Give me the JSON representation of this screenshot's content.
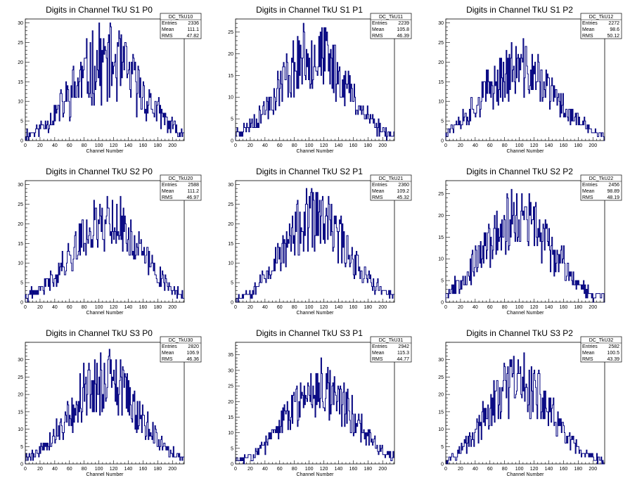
{
  "chart_data": [
    {
      "type": "histogram",
      "title": "Digits in Channel TkU S1 P0",
      "xlabel": "Channel Number",
      "xlim": [
        0,
        216
      ],
      "ylim": [
        0,
        31
      ],
      "xticks": [
        0,
        20,
        40,
        60,
        80,
        100,
        120,
        140,
        160,
        180,
        200
      ],
      "yticks": [
        0,
        5,
        10,
        15,
        20,
        25,
        30
      ],
      "stats": {
        "name": "DC_TkU10",
        "entries": "2336",
        "mean": "111.1",
        "rms": "47.82"
      },
      "shape": {
        "center": 111,
        "sigma": 47.8,
        "peak": 20,
        "noise": 0.32,
        "seed": 11
      }
    },
    {
      "type": "histogram",
      "title": "Digits in Channel TkU S1 P1",
      "xlabel": "Channel Number",
      "xlim": [
        0,
        216
      ],
      "ylim": [
        0,
        28
      ],
      "xticks": [
        0,
        20,
        40,
        60,
        80,
        100,
        120,
        140,
        160,
        180,
        200
      ],
      "yticks": [
        0,
        5,
        10,
        15,
        20,
        25
      ],
      "stats": {
        "name": "DC_TkU11",
        "entries": "2239",
        "mean": "105.8",
        "rms": "46.39"
      },
      "shape": {
        "center": 106,
        "sigma": 46.4,
        "peak": 20,
        "noise": 0.25,
        "seed": 23
      }
    },
    {
      "type": "histogram",
      "title": "Digits in Channel TkU S1 P2",
      "xlabel": "Channel Number",
      "xlim": [
        0,
        216
      ],
      "ylim": [
        0,
        31
      ],
      "xticks": [
        0,
        20,
        40,
        60,
        80,
        100,
        120,
        140,
        160,
        180,
        200
      ],
      "yticks": [
        0,
        5,
        10,
        15,
        20,
        25,
        30
      ],
      "stats": {
        "name": "DC_TkU12",
        "entries": "2272",
        "mean": "98.6",
        "rms": "50.12"
      },
      "shape": {
        "center": 99,
        "sigma": 50.1,
        "peak": 18,
        "noise": 0.25,
        "seed": 37
      }
    },
    {
      "type": "histogram",
      "title": "Digits in Channel TkU S2 P0",
      "xlabel": "Channel Number",
      "xlim": [
        0,
        216
      ],
      "ylim": [
        0,
        31
      ],
      "xticks": [
        0,
        20,
        40,
        60,
        80,
        100,
        120,
        140,
        160,
        180,
        200
      ],
      "yticks": [
        0,
        5,
        10,
        15,
        20,
        25,
        30
      ],
      "stats": {
        "name": "DC_TkU20",
        "entries": "2588",
        "mean": "111.2",
        "rms": "46.97"
      },
      "shape": {
        "center": 111,
        "sigma": 47,
        "peak": 21,
        "noise": 0.22,
        "seed": 41
      }
    },
    {
      "type": "histogram",
      "title": "Digits in Channel TkU S2 P1",
      "xlabel": "Channel Number",
      "xlim": [
        0,
        216
      ],
      "ylim": [
        0,
        31
      ],
      "xticks": [
        0,
        20,
        40,
        60,
        80,
        100,
        120,
        140,
        160,
        180,
        200
      ],
      "yticks": [
        0,
        5,
        10,
        15,
        20,
        25,
        30
      ],
      "stats": {
        "name": "DC_TkU21",
        "entries": "2360",
        "mean": "109.2",
        "rms": "45.32"
      },
      "shape": {
        "center": 109,
        "sigma": 45.3,
        "peak": 21,
        "noise": 0.25,
        "seed": 53
      }
    },
    {
      "type": "histogram",
      "title": "Digits in Channel TkU S2 P2",
      "xlabel": "Channel Number",
      "xlim": [
        0,
        216
      ],
      "ylim": [
        0,
        28
      ],
      "xticks": [
        0,
        20,
        40,
        60,
        80,
        100,
        120,
        140,
        160,
        180,
        200
      ],
      "yticks": [
        0,
        5,
        10,
        15,
        20,
        25
      ],
      "stats": {
        "name": "DC_TkU22",
        "entries": "2456",
        "mean": "98.89",
        "rms": "48.19"
      },
      "shape": {
        "center": 99,
        "sigma": 48.2,
        "peak": 19,
        "noise": 0.25,
        "seed": 67
      }
    },
    {
      "type": "histogram",
      "title": "Digits in Channel TkU S3 P0",
      "xlabel": "Channel Number",
      "xlim": [
        0,
        216
      ],
      "ylim": [
        0,
        35
      ],
      "xticks": [
        0,
        20,
        40,
        60,
        80,
        100,
        120,
        140,
        160,
        180,
        200
      ],
      "yticks": [
        0,
        5,
        10,
        15,
        20,
        25,
        30
      ],
      "stats": {
        "name": "DC_TkU30",
        "entries": "2820",
        "mean": "106.9",
        "rms": "46.36"
      },
      "shape": {
        "center": 107,
        "sigma": 46.4,
        "peak": 24,
        "noise": 0.25,
        "seed": 79
      }
    },
    {
      "type": "histogram",
      "title": "Digits in Channel TkU S3 P1",
      "xlabel": "Channel Number",
      "xlim": [
        0,
        216
      ],
      "ylim": [
        0,
        39
      ],
      "xticks": [
        0,
        20,
        40,
        60,
        80,
        100,
        120,
        140,
        160,
        180,
        200
      ],
      "yticks": [
        0,
        5,
        10,
        15,
        20,
        25,
        30,
        35
      ],
      "stats": {
        "name": "DC_TkU31",
        "entries": "2942",
        "mean": "115.3",
        "rms": "44.77"
      },
      "shape": {
        "center": 115,
        "sigma": 44.8,
        "peak": 25,
        "noise": 0.25,
        "seed": 83
      }
    },
    {
      "type": "histogram",
      "title": "Digits in Channel TkU S3 P2",
      "xlabel": "Channel Number",
      "xlim": [
        0,
        216
      ],
      "ylim": [
        0,
        35
      ],
      "xticks": [
        0,
        20,
        40,
        60,
        80,
        100,
        120,
        140,
        160,
        180,
        200
      ],
      "yticks": [
        0,
        5,
        10,
        15,
        20,
        25,
        30
      ],
      "stats": {
        "name": "DC_TkU32",
        "entries": "2582",
        "mean": "100.5",
        "rms": "43.39"
      },
      "shape": {
        "center": 100,
        "sigma": 43.4,
        "peak": 23,
        "noise": 0.25,
        "seed": 97
      }
    }
  ],
  "labels": {
    "entries": "Entries",
    "mean": "Mean",
    "rms": "RMS"
  },
  "colors": {
    "line": "#00007f",
    "axis": "#000000",
    "background": "#ffffff"
  }
}
